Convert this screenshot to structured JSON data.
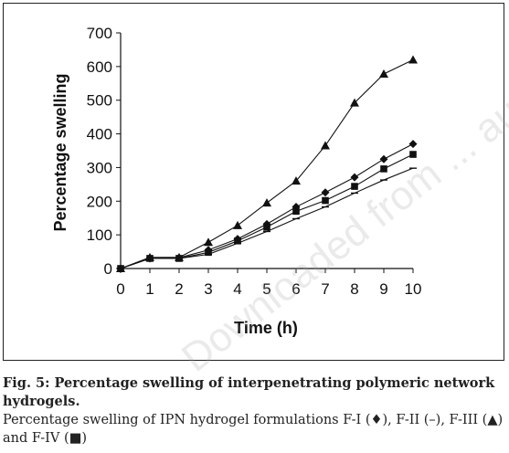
{
  "chart_data": {
    "type": "line",
    "xlabel": "Time (h)",
    "ylabel": "Percentage swelling",
    "xlim": [
      0,
      10
    ],
    "ylim": [
      0,
      700
    ],
    "x_ticks": [
      0,
      1,
      2,
      3,
      4,
      5,
      6,
      7,
      8,
      9,
      10
    ],
    "y_ticks": [
      0,
      100,
      200,
      300,
      400,
      500,
      600,
      700
    ],
    "grid": false,
    "x": [
      0,
      1,
      2,
      3,
      4,
      5,
      6,
      7,
      8,
      9,
      10
    ],
    "series": [
      {
        "marker": "diamond",
        "values": [
          0,
          30,
          32,
          55,
          88,
          132,
          183,
          226,
          271,
          325,
          370
        ]
      },
      {
        "marker": "dash",
        "values": [
          0,
          30,
          30,
          42,
          75,
          110,
          148,
          183,
          224,
          263,
          298
        ]
      },
      {
        "marker": "triangle",
        "values": [
          0,
          33,
          33,
          78,
          128,
          195,
          260,
          365,
          492,
          578,
          620
        ]
      },
      {
        "marker": "square",
        "values": [
          0,
          30,
          30,
          48,
          82,
          123,
          170,
          202,
          244,
          296,
          339
        ]
      }
    ]
  },
  "caption": {
    "title": "Fig. 5: Percentage swelling of interpenetrating polymeric network hydrogels.",
    "description": "Percentage swelling of IPN hydrogel formulations F-I (♦), F-II (–), F-III (▲) and F-IV (■)"
  },
  "watermark": "Downloaded from ... authors"
}
